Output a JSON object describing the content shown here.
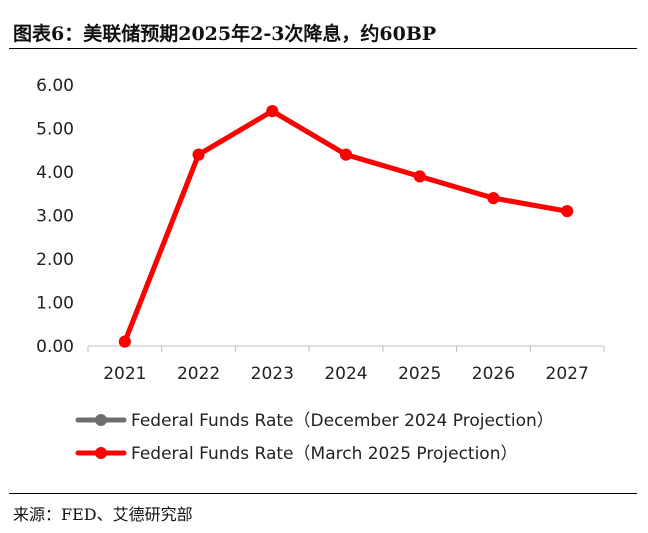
{
  "header": {
    "title": "图表6：美联储预期2025年2-3次降息，约60BP"
  },
  "footer": {
    "source": "来源：FED、艾德研究部"
  },
  "chart_data": {
    "type": "line",
    "title": "",
    "xlabel": "",
    "ylabel": "",
    "x": [
      "2021",
      "2022",
      "2023",
      "2024",
      "2025",
      "2026",
      "2027"
    ],
    "ylim": [
      0,
      6
    ],
    "yticks": [
      "0.00",
      "1.00",
      "2.00",
      "3.00",
      "4.00",
      "5.00",
      "6.00"
    ],
    "grid": false,
    "legend_position": "bottom",
    "series": [
      {
        "name": "Federal Funds Rate（December 2024 Projection）",
        "color": "#6e6e6e",
        "values": [
          0.1,
          4.4,
          5.4,
          4.4,
          3.9,
          3.4,
          3.1
        ]
      },
      {
        "name": "Federal Funds Rate（March 2025 Projection）",
        "color": "#ff0000",
        "values": [
          0.1,
          4.4,
          5.4,
          4.4,
          3.9,
          3.4,
          3.1
        ]
      }
    ]
  }
}
